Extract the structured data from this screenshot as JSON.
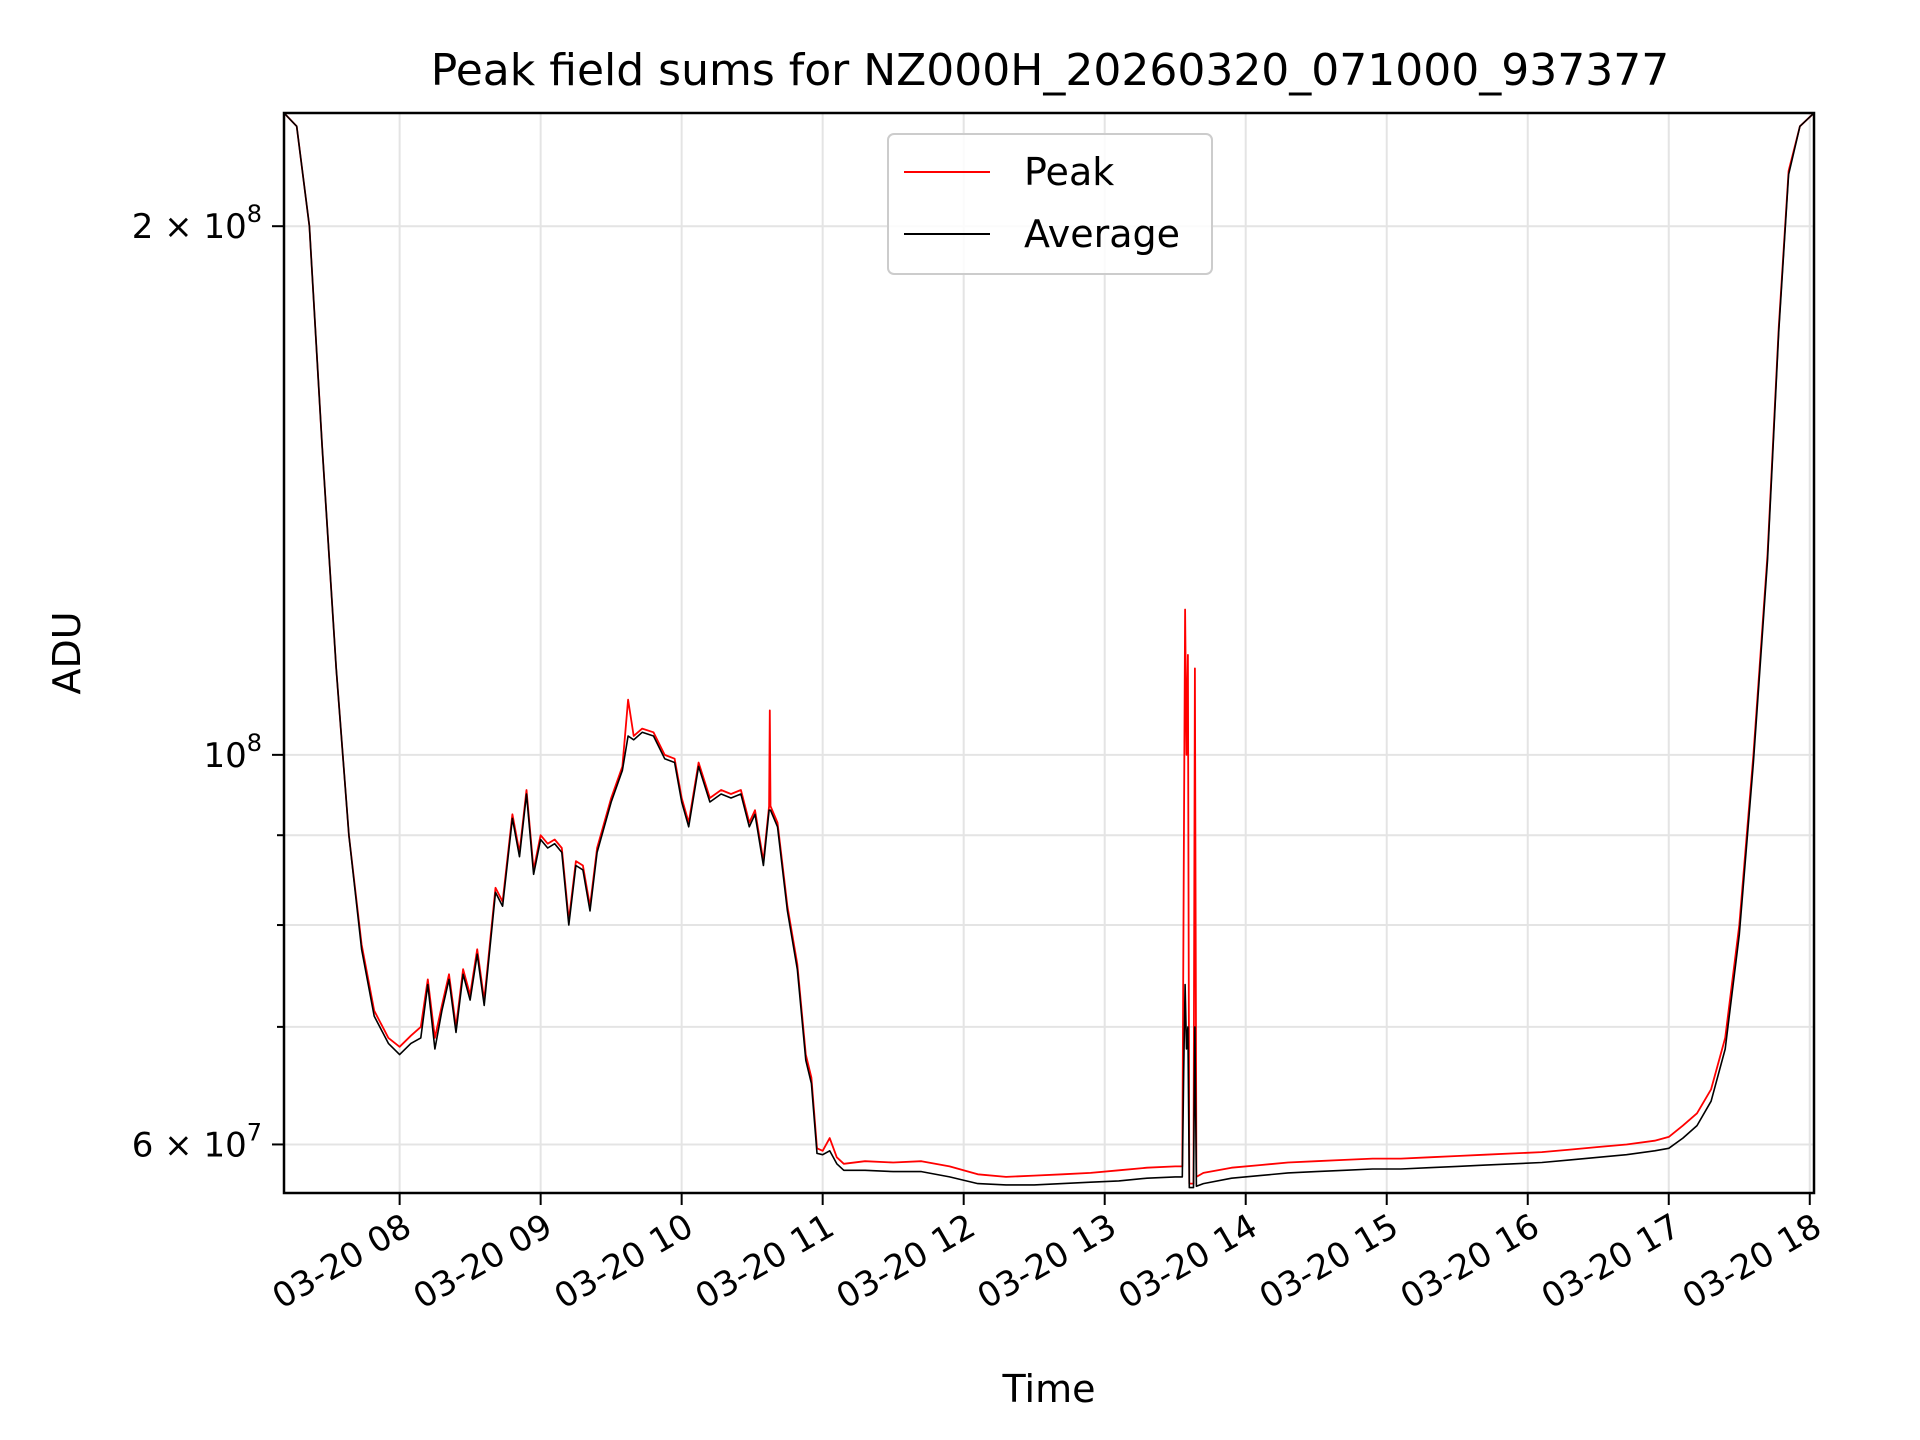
{
  "chart_data": {
    "type": "line",
    "title": "Peak field sums for NZ000H_20260320_071000_937377",
    "xlabel": "Time",
    "ylabel": "ADU",
    "yscale": "log",
    "xlim": [
      7.18,
      18.03
    ],
    "ylim": [
      56300000,
      232000000
    ],
    "grid": true,
    "legend_position": "upper-center",
    "x_ticks": [
      {
        "value": 8,
        "label": "03-20 08"
      },
      {
        "value": 9,
        "label": "03-20 09"
      },
      {
        "value": 10,
        "label": "03-20 10"
      },
      {
        "value": 11,
        "label": "03-20 11"
      },
      {
        "value": 12,
        "label": "03-20 12"
      },
      {
        "value": 13,
        "label": "03-20 13"
      },
      {
        "value": 14,
        "label": "03-20 14"
      },
      {
        "value": 15,
        "label": "03-20 15"
      },
      {
        "value": 16,
        "label": "03-20 16"
      },
      {
        "value": 17,
        "label": "03-20 17"
      },
      {
        "value": 18,
        "label": "03-20 18"
      }
    ],
    "y_ticks_major": [
      {
        "value": 60000000,
        "mantissa": "6",
        "exponent": "7"
      },
      {
        "value": 100000000,
        "mantissa": "",
        "exponent": "8"
      },
      {
        "value": 200000000,
        "mantissa": "2",
        "exponent": "8"
      }
    ],
    "y_ticks_minor": [
      70000000,
      80000000,
      90000000
    ],
    "series": [
      {
        "name": "Peak",
        "color": "#ff0000",
        "points": [
          [
            7.18,
            232000000
          ],
          [
            7.27,
            228000000
          ],
          [
            7.36,
            200000000
          ],
          [
            7.45,
            150000000
          ],
          [
            7.55,
            112000000
          ],
          [
            7.64,
            90000000
          ],
          [
            7.73,
            78000000
          ],
          [
            7.82,
            71500000
          ],
          [
            7.92,
            69000000
          ],
          [
            8.0,
            68200000
          ],
          [
            8.08,
            69200000
          ],
          [
            8.15,
            70000000
          ],
          [
            8.2,
            74500000
          ],
          [
            8.25,
            69000000
          ],
          [
            8.3,
            72000000
          ],
          [
            8.35,
            75000000
          ],
          [
            8.4,
            70000000
          ],
          [
            8.45,
            75500000
          ],
          [
            8.5,
            73000000
          ],
          [
            8.55,
            77500000
          ],
          [
            8.6,
            72500000
          ],
          [
            8.68,
            84000000
          ],
          [
            8.73,
            82500000
          ],
          [
            8.8,
            92500000
          ],
          [
            8.85,
            88000000
          ],
          [
            8.9,
            95500000
          ],
          [
            8.95,
            86000000
          ],
          [
            9.0,
            90000000
          ],
          [
            9.05,
            89000000
          ],
          [
            9.1,
            89500000
          ],
          [
            9.15,
            88500000
          ],
          [
            9.2,
            80500000
          ],
          [
            9.25,
            87000000
          ],
          [
            9.3,
            86500000
          ],
          [
            9.35,
            82000000
          ],
          [
            9.4,
            88500000
          ],
          [
            9.5,
            94500000
          ],
          [
            9.58,
            98500000
          ],
          [
            9.62,
            107500000
          ],
          [
            9.66,
            102500000
          ],
          [
            9.72,
            103500000
          ],
          [
            9.8,
            103000000
          ],
          [
            9.88,
            100000000
          ],
          [
            9.95,
            99500000
          ],
          [
            10.0,
            94500000
          ],
          [
            10.05,
            91500000
          ],
          [
            10.12,
            99000000
          ],
          [
            10.2,
            94500000
          ],
          [
            10.28,
            95500000
          ],
          [
            10.35,
            95000000
          ],
          [
            10.42,
            95500000
          ],
          [
            10.48,
            91500000
          ],
          [
            10.52,
            93000000
          ],
          [
            10.58,
            87000000
          ],
          [
            10.62,
            93500000
          ],
          [
            10.625,
            106000000
          ],
          [
            10.63,
            93500000
          ],
          [
            10.68,
            91500000
          ],
          [
            10.75,
            82000000
          ],
          [
            10.82,
            76000000
          ],
          [
            10.88,
            67500000
          ],
          [
            10.92,
            65500000
          ],
          [
            10.96,
            59700000
          ],
          [
            11.0,
            59500000
          ],
          [
            11.05,
            60500000
          ],
          [
            11.1,
            59000000
          ],
          [
            11.15,
            58500000
          ],
          [
            11.3,
            58700000
          ],
          [
            11.5,
            58600000
          ],
          [
            11.7,
            58700000
          ],
          [
            11.9,
            58300000
          ],
          [
            12.1,
            57700000
          ],
          [
            12.3,
            57500000
          ],
          [
            12.5,
            57600000
          ],
          [
            12.7,
            57700000
          ],
          [
            12.9,
            57800000
          ],
          [
            13.1,
            58000000
          ],
          [
            13.3,
            58200000
          ],
          [
            13.5,
            58300000
          ],
          [
            13.55,
            58300000
          ],
          [
            13.56,
            85000000
          ],
          [
            13.57,
            121000000
          ],
          [
            13.58,
            100000000
          ],
          [
            13.59,
            114000000
          ],
          [
            13.6,
            57000000
          ],
          [
            13.63,
            57000000
          ],
          [
            13.64,
            112000000
          ],
          [
            13.65,
            57500000
          ],
          [
            13.7,
            57800000
          ],
          [
            13.9,
            58200000
          ],
          [
            14.1,
            58400000
          ],
          [
            14.3,
            58600000
          ],
          [
            14.5,
            58700000
          ],
          [
            14.7,
            58800000
          ],
          [
            14.9,
            58900000
          ],
          [
            15.1,
            58900000
          ],
          [
            15.3,
            59000000
          ],
          [
            15.5,
            59100000
          ],
          [
            15.7,
            59200000
          ],
          [
            15.9,
            59300000
          ],
          [
            16.1,
            59400000
          ],
          [
            16.3,
            59600000
          ],
          [
            16.5,
            59800000
          ],
          [
            16.7,
            60000000
          ],
          [
            16.9,
            60300000
          ],
          [
            17.0,
            60600000
          ],
          [
            17.1,
            61500000
          ],
          [
            17.2,
            62500000
          ],
          [
            17.3,
            64500000
          ],
          [
            17.4,
            69000000
          ],
          [
            17.5,
            80000000
          ],
          [
            17.6,
            100000000
          ],
          [
            17.7,
            130000000
          ],
          [
            17.78,
            175000000
          ],
          [
            17.85,
            215000000
          ],
          [
            17.93,
            228000000
          ],
          [
            18.03,
            232000000
          ]
        ]
      },
      {
        "name": "Average",
        "color": "#000000",
        "points": [
          [
            7.18,
            232000000
          ],
          [
            7.27,
            228000000
          ],
          [
            7.36,
            200000000
          ],
          [
            7.45,
            150000000
          ],
          [
            7.55,
            112000000
          ],
          [
            7.64,
            90000000
          ],
          [
            7.73,
            77500000
          ],
          [
            7.82,
            71000000
          ],
          [
            7.92,
            68500000
          ],
          [
            8.0,
            67500000
          ],
          [
            8.08,
            68500000
          ],
          [
            8.15,
            69000000
          ],
          [
            8.2,
            74000000
          ],
          [
            8.25,
            68000000
          ],
          [
            8.3,
            71500000
          ],
          [
            8.35,
            74500000
          ],
          [
            8.4,
            69500000
          ],
          [
            8.45,
            75000000
          ],
          [
            8.5,
            72500000
          ],
          [
            8.55,
            77000000
          ],
          [
            8.6,
            72000000
          ],
          [
            8.68,
            83500000
          ],
          [
            8.73,
            82000000
          ],
          [
            8.8,
            92000000
          ],
          [
            8.85,
            87500000
          ],
          [
            8.9,
            95000000
          ],
          [
            8.95,
            85500000
          ],
          [
            9.0,
            89500000
          ],
          [
            9.05,
            88500000
          ],
          [
            9.1,
            89000000
          ],
          [
            9.15,
            88000000
          ],
          [
            9.2,
            80000000
          ],
          [
            9.25,
            86500000
          ],
          [
            9.3,
            86000000
          ],
          [
            9.35,
            81500000
          ],
          [
            9.4,
            88000000
          ],
          [
            9.5,
            94000000
          ],
          [
            9.58,
            98000000
          ],
          [
            9.62,
            102500000
          ],
          [
            9.66,
            102000000
          ],
          [
            9.72,
            103000000
          ],
          [
            9.8,
            102500000
          ],
          [
            9.88,
            99500000
          ],
          [
            9.95,
            99000000
          ],
          [
            10.0,
            94000000
          ],
          [
            10.05,
            91000000
          ],
          [
            10.12,
            98500000
          ],
          [
            10.2,
            94000000
          ],
          [
            10.28,
            95000000
          ],
          [
            10.35,
            94500000
          ],
          [
            10.42,
            95000000
          ],
          [
            10.48,
            91000000
          ],
          [
            10.52,
            92500000
          ],
          [
            10.58,
            86500000
          ],
          [
            10.62,
            93000000
          ],
          [
            10.625,
            93000000
          ],
          [
            10.63,
            93000000
          ],
          [
            10.68,
            91000000
          ],
          [
            10.75,
            81500000
          ],
          [
            10.82,
            75500000
          ],
          [
            10.88,
            67000000
          ],
          [
            10.92,
            65000000
          ],
          [
            10.96,
            59300000
          ],
          [
            11.0,
            59200000
          ],
          [
            11.05,
            59500000
          ],
          [
            11.1,
            58500000
          ],
          [
            11.15,
            58000000
          ],
          [
            11.3,
            58000000
          ],
          [
            11.5,
            57900000
          ],
          [
            11.7,
            57900000
          ],
          [
            11.9,
            57500000
          ],
          [
            12.1,
            57000000
          ],
          [
            12.3,
            56900000
          ],
          [
            12.5,
            56900000
          ],
          [
            12.7,
            57000000
          ],
          [
            12.9,
            57100000
          ],
          [
            13.1,
            57200000
          ],
          [
            13.3,
            57400000
          ],
          [
            13.5,
            57500000
          ],
          [
            13.55,
            57500000
          ],
          [
            13.56,
            66000000
          ],
          [
            13.57,
            74000000
          ],
          [
            13.58,
            68000000
          ],
          [
            13.59,
            70000000
          ],
          [
            13.6,
            56700000
          ],
          [
            13.63,
            56700000
          ],
          [
            13.64,
            70000000
          ],
          [
            13.65,
            56800000
          ],
          [
            13.7,
            57000000
          ],
          [
            13.9,
            57400000
          ],
          [
            14.1,
            57600000
          ],
          [
            14.3,
            57800000
          ],
          [
            14.5,
            57900000
          ],
          [
            14.7,
            58000000
          ],
          [
            14.9,
            58100000
          ],
          [
            15.1,
            58100000
          ],
          [
            15.3,
            58200000
          ],
          [
            15.5,
            58300000
          ],
          [
            15.7,
            58400000
          ],
          [
            15.9,
            58500000
          ],
          [
            16.1,
            58600000
          ],
          [
            16.3,
            58800000
          ],
          [
            16.5,
            59000000
          ],
          [
            16.7,
            59200000
          ],
          [
            16.9,
            59500000
          ],
          [
            17.0,
            59700000
          ],
          [
            17.1,
            60500000
          ],
          [
            17.2,
            61500000
          ],
          [
            17.3,
            63500000
          ],
          [
            17.4,
            68000000
          ],
          [
            17.5,
            79000000
          ],
          [
            17.6,
            99000000
          ],
          [
            17.7,
            129000000
          ],
          [
            17.78,
            174000000
          ],
          [
            17.85,
            214000000
          ],
          [
            17.93,
            228000000
          ],
          [
            18.03,
            232000000
          ]
        ]
      }
    ]
  }
}
